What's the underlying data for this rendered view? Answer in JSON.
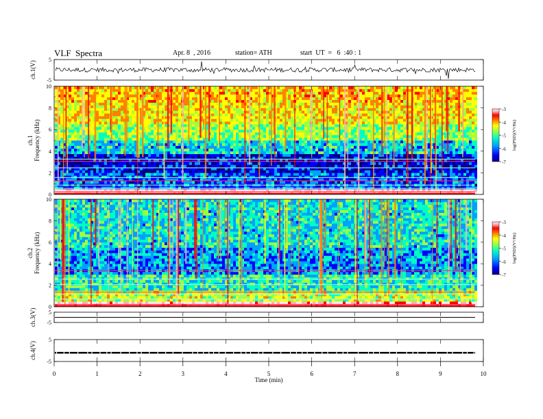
{
  "header": {
    "title": "VLF  Spectra",
    "date": "Apr. 8  , 2016",
    "station": "station= ATH",
    "start": "start  UT  =   6  :40 : 1"
  },
  "colorbar": {
    "label": "log(PSD)(V²/Hz)",
    "ticks": [
      "-3",
      "-4",
      "-5",
      "-6",
      "-7"
    ]
  },
  "colors": {
    "scale": [
      "#000080",
      "#0000ff",
      "#00a0ff",
      "#00ffc0",
      "#a0ff40",
      "#ffff00",
      "#ff8000",
      "#ff0000",
      "#ffb0b0",
      "#ffe8e8"
    ]
  },
  "chart_data": [
    {
      "type": "line",
      "panel": "ch1-waveform",
      "ylabel": "ch.1(V)",
      "ylim": [
        -5,
        5
      ],
      "yticks": [
        "5",
        "-5"
      ],
      "baseline": 0,
      "xlim": [
        0,
        10
      ]
    },
    {
      "type": "heatmap",
      "panel": "ch1-spectrogram",
      "ylabel": [
        "ch.1",
        "Frequency  (kHz)"
      ],
      "ylim": [
        0,
        10
      ],
      "yticks": [
        "0",
        "2",
        "4",
        "6",
        "8",
        "10"
      ],
      "xlim": [
        0,
        10
      ],
      "colorbar_range": [
        -7,
        -3
      ]
    },
    {
      "type": "heatmap",
      "panel": "ch2-spectrogram",
      "ylabel": [
        "ch.2",
        "Frequency  (kHz)"
      ],
      "ylim": [
        0,
        10
      ],
      "yticks": [
        "0",
        "2",
        "4",
        "6",
        "8",
        "10"
      ],
      "xlim": [
        0,
        10
      ],
      "colorbar_range": [
        -7,
        -3
      ]
    },
    {
      "type": "line",
      "panel": "ch3-waveform",
      "ylabel": "ch.3(V)",
      "ylim": [
        -5,
        5
      ],
      "yticks": [
        "5",
        "-5"
      ],
      "baseline": 0,
      "xlim": [
        0,
        10
      ]
    },
    {
      "type": "line",
      "panel": "ch4-waveform",
      "ylabel": "ch.4(V)",
      "ylim": [
        -5,
        5
      ],
      "yticks": [
        "5",
        "-5"
      ],
      "baseline": -1,
      "xlim": [
        0,
        10
      ],
      "xlabel": "Time  (min)",
      "xticks": [
        "0",
        "1",
        "2",
        "3",
        "4",
        "5",
        "6",
        "7",
        "8",
        "9",
        "10"
      ]
    }
  ]
}
